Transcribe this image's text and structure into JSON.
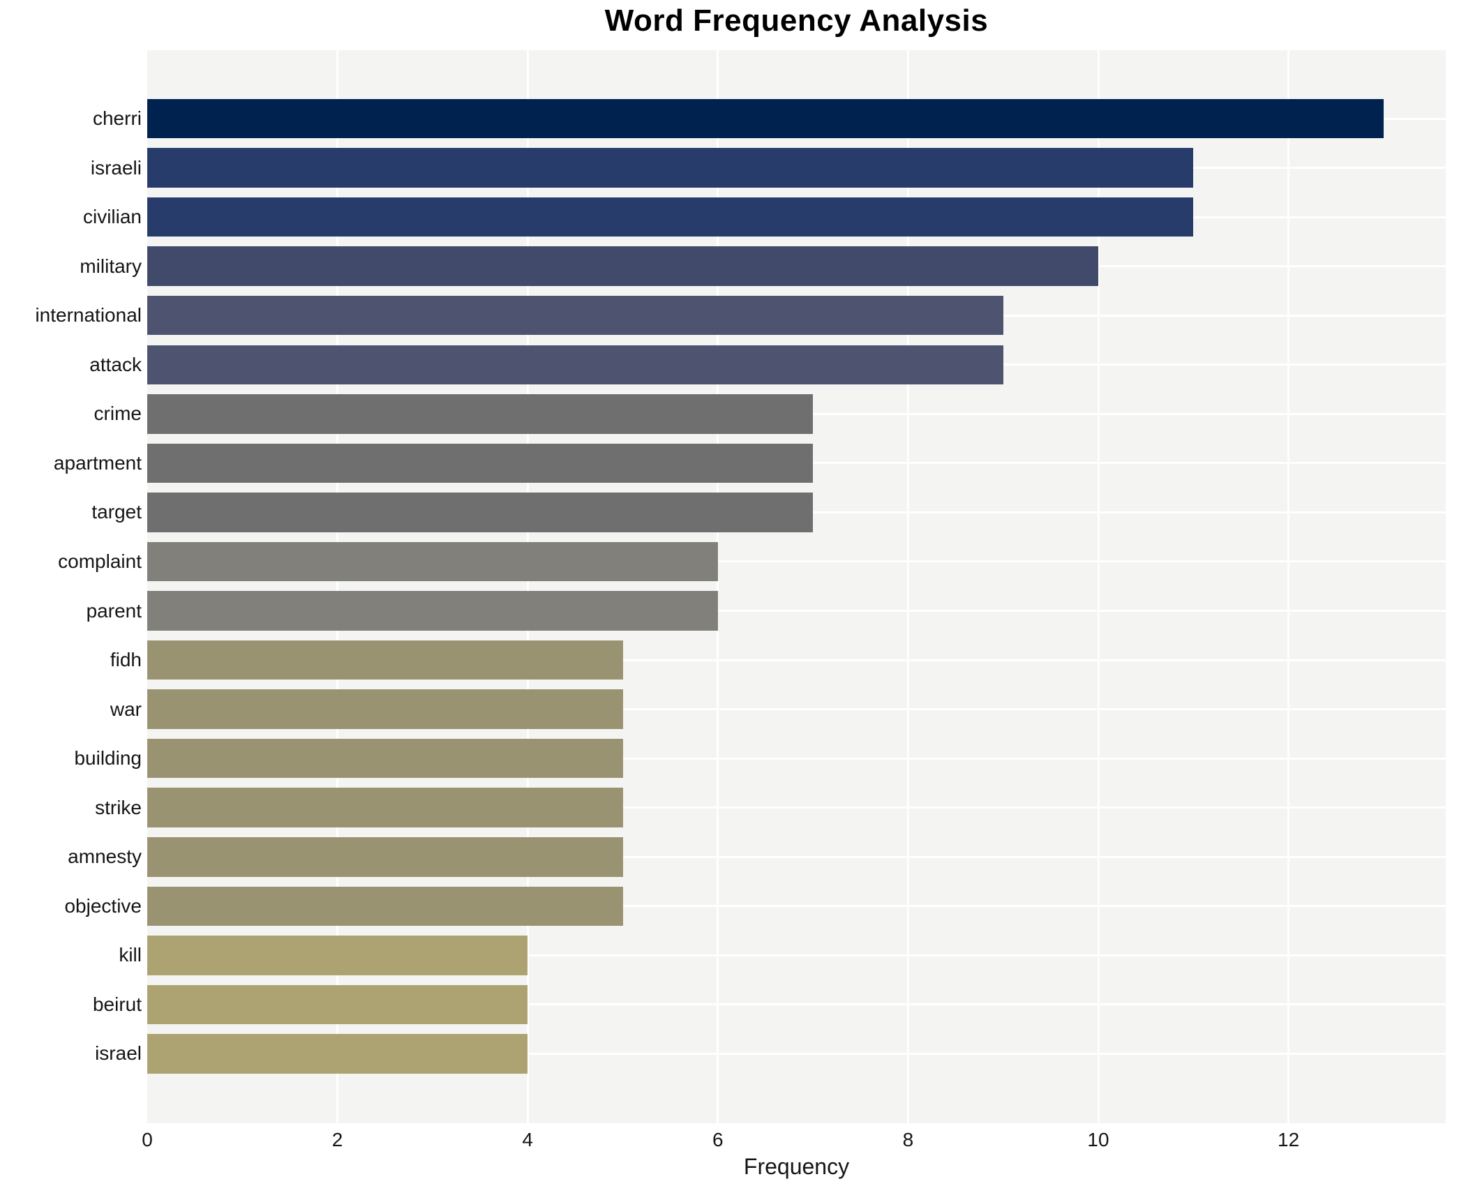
{
  "chart_data": {
    "type": "bar",
    "orientation": "horizontal",
    "title": "Word Frequency Analysis",
    "xlabel": "Frequency",
    "ylabel": "",
    "categories": [
      "cherri",
      "israeli",
      "civilian",
      "military",
      "international",
      "attack",
      "crime",
      "apartment",
      "target",
      "complaint",
      "parent",
      "fidh",
      "war",
      "building",
      "strike",
      "amnesty",
      "objective",
      "kill",
      "beirut",
      "israel"
    ],
    "values": [
      13,
      11,
      11,
      10,
      9,
      9,
      7,
      7,
      7,
      6,
      6,
      5,
      5,
      5,
      5,
      5,
      5,
      4,
      4,
      4
    ],
    "bar_colors": [
      "#00224e",
      "#273c6b",
      "#273c6b",
      "#424a6b",
      "#4e546f",
      "#4e546f",
      "#6e6f6e",
      "#6e6f6e",
      "#6e6f6e",
      "#82807a",
      "#82807a",
      "#9a9372",
      "#9a9372",
      "#9a9372",
      "#9a9372",
      "#9a9372",
      "#9a9372",
      "#ada372",
      "#ada372",
      "#ada372"
    ],
    "xticks": [
      0,
      2,
      4,
      6,
      8,
      10,
      12
    ],
    "xlim": [
      0,
      13.65
    ],
    "grid": true,
    "legend_position": "none",
    "plot_background": "#f4f4f2",
    "grid_color": "#ffffff",
    "text_color": "#151515",
    "title_color": "#000000"
  }
}
